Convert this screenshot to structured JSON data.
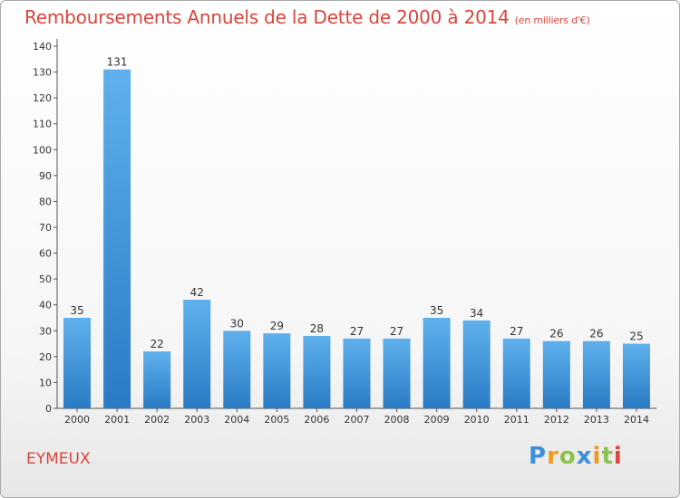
{
  "title": "Remboursements Annuels de la Dette de 2000 à 2014",
  "unit": "(en milliers d'€)",
  "commune": "EYMEUX",
  "brand": {
    "letters": [
      "P",
      "r",
      "o",
      "x",
      "i",
      "t",
      "i"
    ],
    "colors": [
      "#3d8fd9",
      "#f29a1f",
      "#8bc34a",
      "#3d8fd9",
      "#f29a1f",
      "#8bc34a",
      "#e0453b"
    ]
  },
  "chart_data": {
    "type": "bar",
    "categories": [
      "2000",
      "2001",
      "2002",
      "2003",
      "2004",
      "2005",
      "2006",
      "2007",
      "2008",
      "2009",
      "2010",
      "2011",
      "2012",
      "2013",
      "2014"
    ],
    "values": [
      35,
      131,
      22,
      42,
      30,
      29,
      28,
      27,
      27,
      35,
      34,
      27,
      26,
      26,
      25
    ],
    "title": "Remboursements Annuels de la Dette de 2000 à 2014",
    "ylim": [
      0,
      140
    ],
    "yticks": [
      0,
      10,
      20,
      30,
      40,
      50,
      60,
      70,
      80,
      90,
      100,
      110,
      120,
      130,
      140
    ],
    "grid": false,
    "bar_color": "#3a8fd6"
  }
}
